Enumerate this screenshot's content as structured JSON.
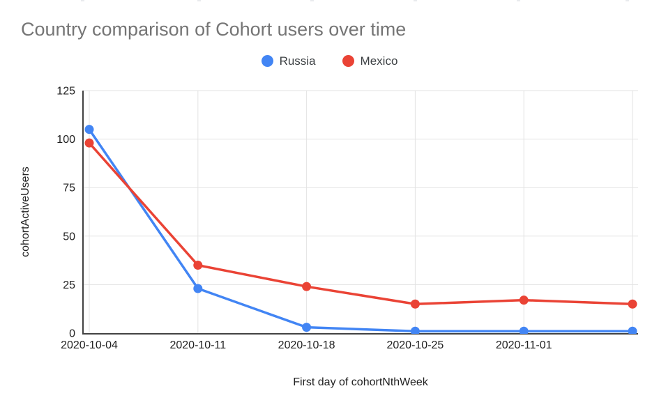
{
  "chart_data": {
    "type": "line",
    "title": "Country comparison of Cohort users over time",
    "xlabel": "First day of cohortNthWeek",
    "ylabel": "cohortActiveUsers",
    "categories": [
      "2020-10-04",
      "2020-10-11",
      "2020-10-18",
      "2020-10-25",
      "2020-11-01",
      ""
    ],
    "series": [
      {
        "name": "Russia",
        "color": "#4285F4",
        "values": [
          105,
          23,
          3,
          1,
          1,
          1
        ]
      },
      {
        "name": "Mexico",
        "color": "#EA4335",
        "values": [
          98,
          35,
          24,
          15,
          17,
          15
        ]
      }
    ],
    "ylim": [
      0,
      125
    ],
    "y_ticks": [
      0,
      25,
      50,
      75,
      100,
      125
    ],
    "grid": true,
    "legend_position": "top-center",
    "point_style": "filled-circle"
  },
  "colors": {
    "title_text": "#757575",
    "tick_text": "#212121",
    "legend_text": "#3c4043",
    "gridline": "#e3e3e3",
    "axis_line": "#424242",
    "background": "#ffffff",
    "series_russia": "#4285F4",
    "series_mexico": "#EA4335"
  }
}
